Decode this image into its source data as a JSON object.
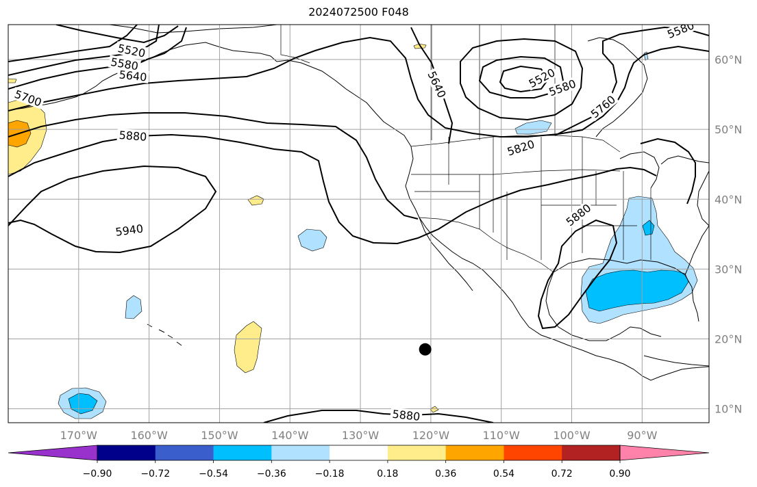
{
  "title": "2024072500 F048",
  "projection": {
    "lon_min": -180,
    "lon_max": -80.5,
    "lat_min": 8,
    "lat_max": 65
  },
  "gridlines": {
    "lons": [
      -170,
      -160,
      -150,
      -140,
      -130,
      -120,
      -110,
      -100,
      -90
    ],
    "lats": [
      10,
      20,
      30,
      40,
      50,
      60
    ],
    "color": "#a0a0a0"
  },
  "lon_labels": [
    "170°W",
    "160°W",
    "150°W",
    "140°W",
    "130°W",
    "120°W",
    "110°W",
    "100°W",
    "90°W"
  ],
  "lat_labels": [
    "10°N",
    "20°N",
    "30°N",
    "40°N",
    "50°N",
    "60°N"
  ],
  "contour_labels": [
    {
      "text": "5520",
      "lon": -162.5,
      "lat": 61.2,
      "rot": 12
    },
    {
      "text": "5580",
      "lon": -163.5,
      "lat": 59.3,
      "rot": 10
    },
    {
      "text": "5640",
      "lon": -162.3,
      "lat": 57.6,
      "rot": 6
    },
    {
      "text": "5700",
      "lon": -177.2,
      "lat": 54.4,
      "rot": 20
    },
    {
      "text": "5880",
      "lon": -162.3,
      "lat": 49.0,
      "rot": 4
    },
    {
      "text": "5940",
      "lon": -162.8,
      "lat": 35.5,
      "rot": -8
    },
    {
      "text": "5640",
      "lon": -119.2,
      "lat": 56.4,
      "rot": 65
    },
    {
      "text": "5520",
      "lon": -104.2,
      "lat": 57.3,
      "rot": -28
    },
    {
      "text": "5580",
      "lon": -101.3,
      "lat": 55.9,
      "rot": -20
    },
    {
      "text": "5760",
      "lon": -95.5,
      "lat": 53.2,
      "rot": -40
    },
    {
      "text": "5820",
      "lon": -107.2,
      "lat": 47.3,
      "rot": -18
    },
    {
      "text": "5880",
      "lon": -99.0,
      "lat": 37.7,
      "rot": -38
    },
    {
      "text": "5580",
      "lon": -84.5,
      "lat": 64.2,
      "rot": -22
    },
    {
      "text": "5880",
      "lon": -123.5,
      "lat": 9.0,
      "rot": 6
    }
  ],
  "marker": {
    "lon": -120.8,
    "lat": 18.5,
    "color": "#000000"
  },
  "colorbar": {
    "colors": [
      "#9932cc",
      "#00008b",
      "#3a5fcd",
      "#00bfff",
      "#b0e2ff",
      "#ffffff",
      "#ffec8b",
      "#ffa500",
      "#ff4500",
      "#b22222",
      "#ff82ab"
    ],
    "labels": [
      "−0.90",
      "−0.72",
      "−0.54",
      "−0.36",
      "−0.18",
      "0.18",
      "0.36",
      "0.54",
      "0.72",
      "0.90"
    ]
  },
  "fill_colors": {
    "light_blue": "#b0e2ff",
    "blue": "#00bfff",
    "yellow": "#ffec8b",
    "orange": "#ffa500"
  }
}
